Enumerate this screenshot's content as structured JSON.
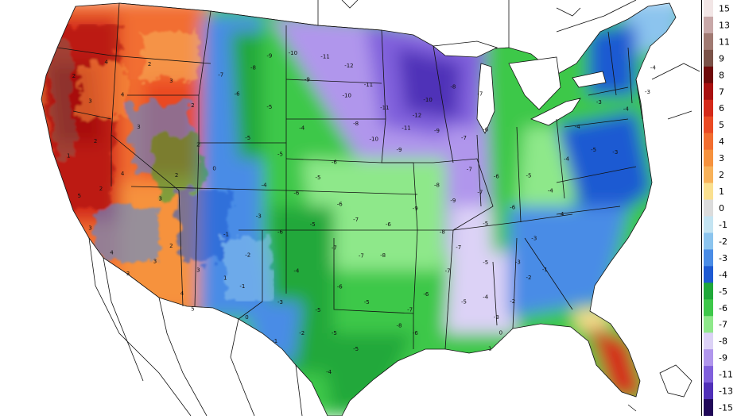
{
  "legend": {
    "scale": [
      {
        "value": "15",
        "color": "#f2e6e6"
      },
      {
        "value": "13",
        "color": "#c8a8a8"
      },
      {
        "value": "11",
        "color": "#a07a72"
      },
      {
        "value": "9",
        "color": "#7a5248"
      },
      {
        "value": "8",
        "color": "#6e0a0a"
      },
      {
        "value": "7",
        "color": "#a81010"
      },
      {
        "value": "6",
        "color": "#d42a1a"
      },
      {
        "value": "5",
        "color": "#ea4a24"
      },
      {
        "value": "4",
        "color": "#f26e30"
      },
      {
        "value": "3",
        "color": "#f6923e"
      },
      {
        "value": "2",
        "color": "#f8b25a"
      },
      {
        "value": "1",
        "color": "#fae090"
      },
      {
        "value": "0",
        "color": "#dcdcdc"
      },
      {
        "value": "-1",
        "color": "#c4e4f2"
      },
      {
        "value": "-2",
        "color": "#8cc4ee"
      },
      {
        "value": "-3",
        "color": "#4a8ce6"
      },
      {
        "value": "-4",
        "color": "#1e5ad2"
      },
      {
        "value": "-5",
        "color": "#20a83a"
      },
      {
        "value": "-6",
        "color": "#3ec84a"
      },
      {
        "value": "-7",
        "color": "#8ee88a"
      },
      {
        "value": "-8",
        "color": "#dcd2f6"
      },
      {
        "value": "-9",
        "color": "#b096ec"
      },
      {
        "value": "-11",
        "color": "#8060dc"
      },
      {
        "value": "-13",
        "color": "#5030b8"
      },
      {
        "value": "-15",
        "color": "#200858"
      }
    ]
  },
  "map": {
    "station_labels": [
      {
        "text": "-9",
        "lon": -104.0,
        "lat": 48.3
      },
      {
        "text": "-10",
        "lon": -102.0,
        "lat": 48.5
      },
      {
        "text": "-11",
        "lon": -99.0,
        "lat": 48.3
      },
      {
        "text": "-12",
        "lon": -96.8,
        "lat": 47.7
      },
      {
        "text": "-9",
        "lon": -100.5,
        "lat": 46.8
      },
      {
        "text": "-11",
        "lon": -95.0,
        "lat": 46.5
      },
      {
        "text": "-10",
        "lon": -97.0,
        "lat": 45.8
      },
      {
        "text": "-11",
        "lon": -93.5,
        "lat": 45.0
      },
      {
        "text": "-12",
        "lon": -90.5,
        "lat": 44.5
      },
      {
        "text": "-11",
        "lon": -91.5,
        "lat": 43.7
      },
      {
        "text": "-10",
        "lon": -94.5,
        "lat": 43.0
      },
      {
        "text": "-9",
        "lon": -92.0,
        "lat": 42.3
      },
      {
        "text": "-8",
        "lon": -96.0,
        "lat": 44.0
      },
      {
        "text": "-8",
        "lon": -105.5,
        "lat": 47.5
      },
      {
        "text": "-7",
        "lon": -108.5,
        "lat": 47.0
      },
      {
        "text": "-6",
        "lon": -107.0,
        "lat": 45.8
      },
      {
        "text": "-5",
        "lon": -106.0,
        "lat": 43.0
      },
      {
        "text": "-4",
        "lon": -101.0,
        "lat": 43.7
      },
      {
        "text": "-5",
        "lon": -103.0,
        "lat": 42.0
      },
      {
        "text": "-6",
        "lon": -98.0,
        "lat": 41.5
      },
      {
        "text": "-5",
        "lon": -99.5,
        "lat": 40.5
      },
      {
        "text": "-6",
        "lon": -101.5,
        "lat": 39.5
      },
      {
        "text": "-6",
        "lon": -97.5,
        "lat": 38.8
      },
      {
        "text": "-7",
        "lon": -96.0,
        "lat": 37.8
      },
      {
        "text": "-5",
        "lon": -100.0,
        "lat": 37.5
      },
      {
        "text": "-6",
        "lon": -103.0,
        "lat": 37.0
      },
      {
        "text": "-7",
        "lon": -98.0,
        "lat": 36.0
      },
      {
        "text": "-7",
        "lon": -95.5,
        "lat": 35.5
      },
      {
        "text": "-8",
        "lon": -93.5,
        "lat": 35.5
      },
      {
        "text": "-6",
        "lon": -93.0,
        "lat": 37.5
      },
      {
        "text": "-9",
        "lon": -90.5,
        "lat": 38.5
      },
      {
        "text": "-8",
        "lon": -88.5,
        "lat": 40.0
      },
      {
        "text": "-9",
        "lon": -87.0,
        "lat": 39.0
      },
      {
        "text": "-7",
        "lon": -85.5,
        "lat": 41.0
      },
      {
        "text": "-7",
        "lon": -84.5,
        "lat": 39.5
      },
      {
        "text": "-6",
        "lon": -83.0,
        "lat": 40.5
      },
      {
        "text": "-7",
        "lon": -86.0,
        "lat": 43.0
      },
      {
        "text": "-6",
        "lon": -84.0,
        "lat": 43.5
      },
      {
        "text": "-8",
        "lon": -88.0,
        "lat": 37.0
      },
      {
        "text": "-7",
        "lon": -86.5,
        "lat": 36.0
      },
      {
        "text": "-5",
        "lon": -84.0,
        "lat": 37.5
      },
      {
        "text": "-6",
        "lon": -81.5,
        "lat": 38.5
      },
      {
        "text": "-5",
        "lon": -80.0,
        "lat": 40.5
      },
      {
        "text": "-4",
        "lon": -78.0,
        "lat": 39.5
      },
      {
        "text": "-4",
        "lon": -77.0,
        "lat": 38.0
      },
      {
        "text": "-3",
        "lon": -79.5,
        "lat": 36.5
      },
      {
        "text": "-3",
        "lon": -81.0,
        "lat": 35.0
      },
      {
        "text": "-5",
        "lon": -84.0,
        "lat": 35.0
      },
      {
        "text": "-7",
        "lon": -87.5,
        "lat": 34.5
      },
      {
        "text": "-6",
        "lon": -89.5,
        "lat": 33.0
      },
      {
        "text": "-7",
        "lon": -91.0,
        "lat": 32.0
      },
      {
        "text": "-5",
        "lon": -86.0,
        "lat": 32.5
      },
      {
        "text": "-4",
        "lon": -84.0,
        "lat": 32.8
      },
      {
        "text": "-2",
        "lon": -81.5,
        "lat": 32.5
      },
      {
        "text": "-3",
        "lon": -83.0,
        "lat": 31.5
      },
      {
        "text": "-8",
        "lon": -92.0,
        "lat": 31.0
      },
      {
        "text": "-6",
        "lon": -90.5,
        "lat": 30.5
      },
      {
        "text": "-5",
        "lon": -95.0,
        "lat": 32.5
      },
      {
        "text": "-6",
        "lon": -97.5,
        "lat": 33.5
      },
      {
        "text": "-5",
        "lon": -99.5,
        "lat": 32.0
      },
      {
        "text": "-4",
        "lon": -101.5,
        "lat": 34.5
      },
      {
        "text": "-3",
        "lon": -103.0,
        "lat": 32.5
      },
      {
        "text": "-5",
        "lon": -98.0,
        "lat": 30.5
      },
      {
        "text": "-5",
        "lon": -96.0,
        "lat": 29.5
      },
      {
        "text": "-4",
        "lon": -98.5,
        "lat": 28.0
      },
      {
        "text": "-2",
        "lon": -101.0,
        "lat": 30.5
      },
      {
        "text": "-1",
        "lon": -103.5,
        "lat": 30.0
      },
      {
        "text": "0",
        "lon": -106.0,
        "lat": 31.5
      },
      {
        "text": "-1",
        "lon": -106.5,
        "lat": 33.5
      },
      {
        "text": "-2",
        "lon": -106.0,
        "lat": 35.5
      },
      {
        "text": "-1",
        "lon": -108.0,
        "lat": 36.8
      },
      {
        "text": "1",
        "lon": -108.0,
        "lat": 34.0
      },
      {
        "text": "3",
        "lon": -110.5,
        "lat": 34.5
      },
      {
        "text": "4",
        "lon": -112.0,
        "lat": 33.0
      },
      {
        "text": "5",
        "lon": -111.0,
        "lat": 32.0
      },
      {
        "text": "2",
        "lon": -113.0,
        "lat": 36.0
      },
      {
        "text": "3",
        "lon": -114.5,
        "lat": 35.0
      },
      {
        "text": "3",
        "lon": -117.0,
        "lat": 34.2
      },
      {
        "text": "4",
        "lon": -118.5,
        "lat": 35.5
      },
      {
        "text": "3",
        "lon": -120.5,
        "lat": 37.0
      },
      {
        "text": "5",
        "lon": -121.5,
        "lat": 39.0
      },
      {
        "text": "2",
        "lon": -119.5,
        "lat": 39.5
      },
      {
        "text": "4",
        "lon": -117.5,
        "lat": 40.5
      },
      {
        "text": "1",
        "lon": -122.5,
        "lat": 41.5
      },
      {
        "text": "2",
        "lon": -120.0,
        "lat": 42.5
      },
      {
        "text": "3",
        "lon": -116.0,
        "lat": 43.5
      },
      {
        "text": "4",
        "lon": -117.5,
        "lat": 45.5
      },
      {
        "text": "3",
        "lon": -120.5,
        "lat": 45.0
      },
      {
        "text": "2",
        "lon": -122.0,
        "lat": 46.5
      },
      {
        "text": "4",
        "lon": -119.0,
        "lat": 47.5
      },
      {
        "text": "2",
        "lon": -115.0,
        "lat": 47.5
      },
      {
        "text": "3",
        "lon": -113.0,
        "lat": 46.5
      },
      {
        "text": "2",
        "lon": -111.0,
        "lat": 45.0
      },
      {
        "text": "2",
        "lon": -110.5,
        "lat": 42.5
      },
      {
        "text": "0",
        "lon": -109.0,
        "lat": 41.0
      },
      {
        "text": "2",
        "lon": -112.5,
        "lat": 40.5
      },
      {
        "text": "3",
        "lon": -114.0,
        "lat": 39.0
      },
      {
        "text": "-4",
        "lon": -104.5,
        "lat": 40.0
      },
      {
        "text": "-3",
        "lon": -105.0,
        "lat": 38.0
      },
      {
        "text": "-5",
        "lon": -104.0,
        "lat": 45.0
      },
      {
        "text": "-9",
        "lon": -88.5,
        "lat": 43.5
      },
      {
        "text": "-10",
        "lon": -89.5,
        "lat": 45.5
      },
      {
        "text": "-8",
        "lon": -87.0,
        "lat": 46.3
      },
      {
        "text": "-7",
        "lon": -84.5,
        "lat": 45.8
      },
      {
        "text": "-4",
        "lon": -75.5,
        "lat": 43.5
      },
      {
        "text": "-3",
        "lon": -73.5,
        "lat": 45.0
      },
      {
        "text": "-4",
        "lon": -71.0,
        "lat": 44.5
      },
      {
        "text": "-3",
        "lon": -69.0,
        "lat": 45.5
      },
      {
        "text": "-4",
        "lon": -68.5,
        "lat": 47.0
      },
      {
        "text": "-5",
        "lon": -74.0,
        "lat": 42.0
      },
      {
        "text": "-4",
        "lon": -76.5,
        "lat": 41.5
      },
      {
        "text": "-3",
        "lon": -72.0,
        "lat": 41.8
      },
      {
        "text": "-2",
        "lon": -80.0,
        "lat": 34.0
      },
      {
        "text": "-1",
        "lon": -78.5,
        "lat": 34.5
      },
      {
        "text": "0",
        "lon": -82.5,
        "lat": 30.5
      },
      {
        "text": "1",
        "lon": -83.5,
        "lat": 29.5
      }
    ]
  }
}
